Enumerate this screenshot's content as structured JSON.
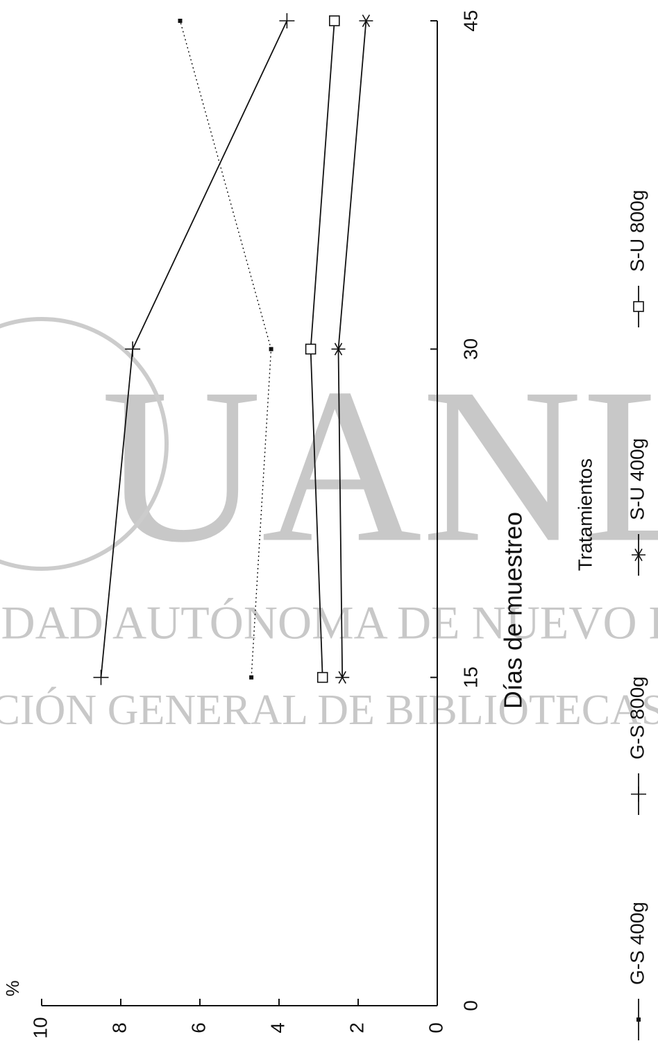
{
  "chart_data": {
    "type": "line",
    "ylabel": "%",
    "xlabel": "Días de muestreo",
    "legend_title": "Tratamientos",
    "watermark": [
      "UANL",
      "UNIVERSIDAD AUTÓNOMA DE NUEVO LEÓN",
      "DIRECCIÓN GENERAL DE BIBLIOTECAS"
    ],
    "x": [
      15,
      30,
      45
    ],
    "xlim": [
      0,
      45
    ],
    "xticks": [
      0,
      15,
      30,
      45
    ],
    "ylim": [
      0,
      10
    ],
    "yticks": [
      0,
      2,
      4,
      6,
      8,
      10
    ],
    "series": [
      {
        "name": "G-S 400g",
        "color": "#111111",
        "marker": "dot",
        "dash": "dotted",
        "values": [
          4.7,
          4.2,
          6.5
        ]
      },
      {
        "name": "G-S 800g",
        "color": "#111111",
        "marker": "plus",
        "values": [
          8.5,
          7.7,
          3.8
        ]
      },
      {
        "name": "S-U 400g",
        "color": "#111111",
        "marker": "asterisk",
        "values": [
          2.4,
          2.5,
          1.8
        ]
      },
      {
        "name": "S-U 800g",
        "color": "#111111",
        "marker": "square",
        "values": [
          2.9,
          3.2,
          2.6
        ]
      }
    ]
  }
}
